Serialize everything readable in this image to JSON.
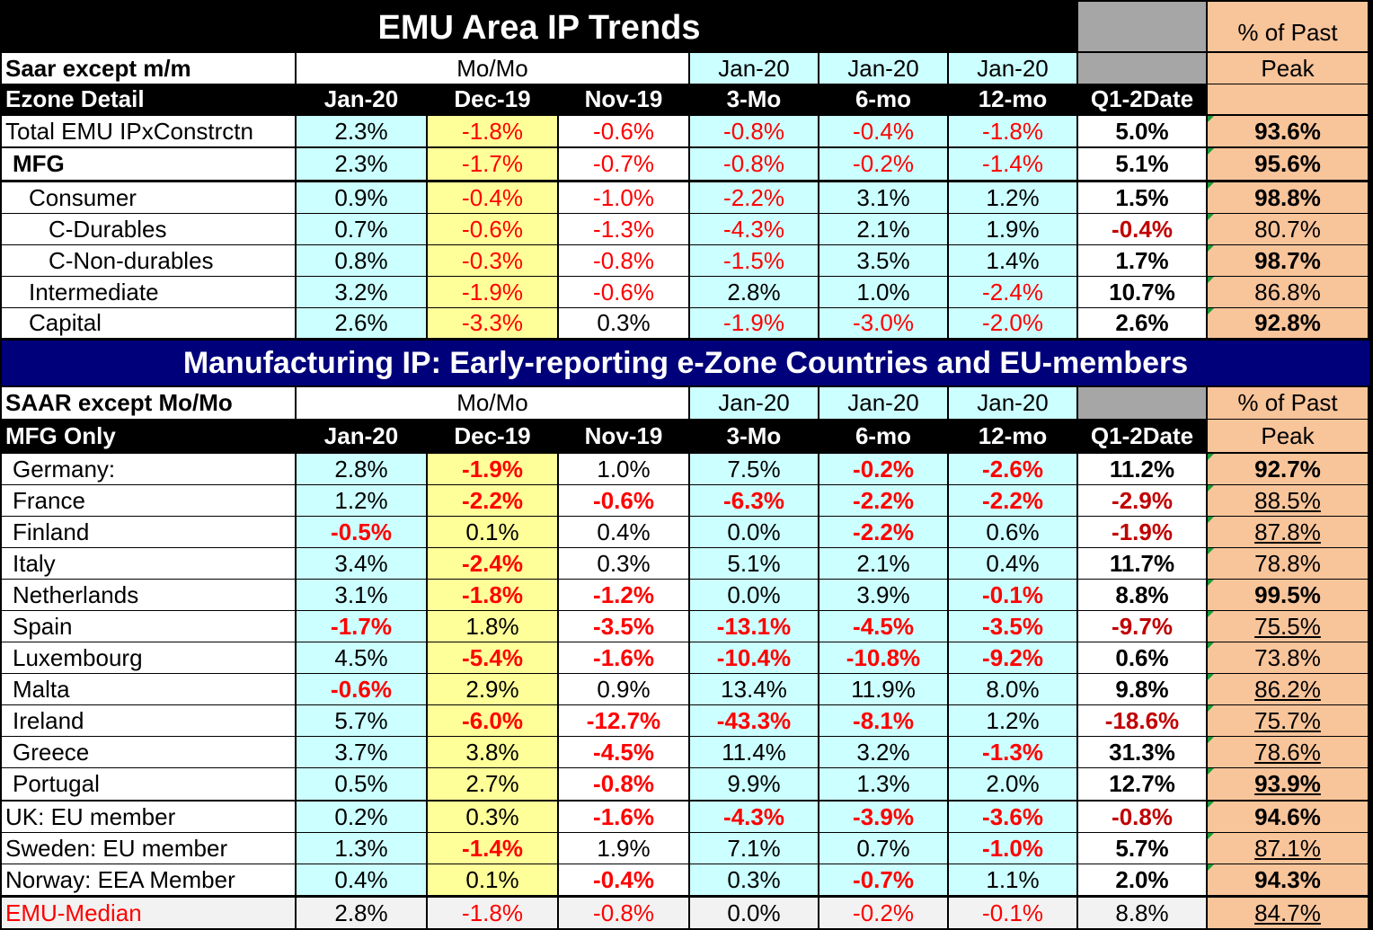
{
  "top_title": "EMU Area IP Trends",
  "mid_title": "Manufacturing IP: Early-reporting e-Zone Countries and EU-members",
  "pct_past": "% of Past",
  "peak": "Peak",
  "colors": {
    "cyan": "#ccffff",
    "yellow": "#ffff99",
    "white": "#ffffff",
    "peach": "#f8c49a",
    "gray": "#a6a6a6",
    "navy": "#00007a",
    "median_bg": "#f2f2f2",
    "red": "#ff0000",
    "darkred": "#c00000"
  },
  "t1": {
    "hdr1_label": "Saar except m/m",
    "hdr1_momo": "Mo/Mo",
    "hdr1_jan": [
      "Jan-20",
      "Jan-20",
      "Jan-20"
    ],
    "hdr2_label": "Ezone Detail",
    "cols": [
      "Jan-20",
      "Dec-19",
      "Nov-19",
      "3-Mo",
      "6-mo",
      "12-mo",
      "Q1-2Date"
    ],
    "rows": [
      {
        "label": "Total EMU IPxConstrctn",
        "indent": 0,
        "bold": false,
        "vals": [
          "2.3%",
          "-1.8%",
          "-0.6%",
          "-0.8%",
          "-0.4%",
          "-1.8%",
          "5.0%"
        ],
        "peak": "93.6%",
        "peak_bold": true
      },
      {
        "label": "MFG",
        "indent": 1,
        "bold": true,
        "vals": [
          "2.3%",
          "-1.7%",
          "-0.7%",
          "-0.8%",
          "-0.2%",
          "-1.4%",
          "5.1%"
        ],
        "peak": "95.6%",
        "peak_bold": true
      },
      {
        "label": "Consumer",
        "indent": 2,
        "bold": false,
        "vals": [
          "0.9%",
          "-0.4%",
          "-1.0%",
          "-2.2%",
          "3.1%",
          "1.2%",
          "1.5%"
        ],
        "peak": "98.8%",
        "peak_bold": true
      },
      {
        "label": "C-Durables",
        "indent": 3,
        "bold": false,
        "vals": [
          "0.7%",
          "-0.6%",
          "-1.3%",
          "-4.3%",
          "2.1%",
          "1.9%",
          "-0.4%"
        ],
        "peak": "80.7%",
        "peak_bold": false
      },
      {
        "label": "C-Non-durables",
        "indent": 3,
        "bold": false,
        "vals": [
          "0.8%",
          "-0.3%",
          "-0.8%",
          "-1.5%",
          "3.5%",
          "1.4%",
          "1.7%"
        ],
        "peak": "98.7%",
        "peak_bold": true
      },
      {
        "label": "Intermediate",
        "indent": 2,
        "bold": false,
        "vals": [
          "3.2%",
          "-1.9%",
          "-0.6%",
          "2.8%",
          "1.0%",
          "-2.4%",
          "10.7%"
        ],
        "peak": "86.8%",
        "peak_bold": false
      },
      {
        "label": "Capital",
        "indent": 2,
        "bold": false,
        "vals": [
          "2.6%",
          "-3.3%",
          "0.3%",
          "-1.9%",
          "-3.0%",
          "-2.0%",
          "2.6%"
        ],
        "peak": "92.8%",
        "peak_bold": true
      }
    ]
  },
  "t2": {
    "hdr1_label": "SAAR except Mo/Mo",
    "hdr1_momo": "Mo/Mo",
    "hdr1_jan": [
      "Jan-20",
      "Jan-20",
      "Jan-20"
    ],
    "hdr2_label": "MFG Only",
    "cols": [
      "Jan-20",
      "Dec-19",
      "Nov-19",
      "3-Mo",
      "6-mo",
      "12-mo",
      "Q1-2Date"
    ],
    "rows": [
      {
        "label": "Germany:",
        "vals": [
          "2.8%",
          "-1.9%",
          "1.0%",
          "7.5%",
          "-0.2%",
          "-2.6%",
          "11.2%"
        ],
        "peak": "92.7%",
        "peak_bold": true,
        "peak_u": false
      },
      {
        "label": "France",
        "vals": [
          "1.2%",
          "-2.2%",
          "-0.6%",
          "-6.3%",
          "-2.2%",
          "-2.2%",
          "-2.9%"
        ],
        "peak": "88.5%",
        "peak_bold": false,
        "peak_u": true
      },
      {
        "label": "Finland",
        "vals": [
          "-0.5%",
          "0.1%",
          "0.4%",
          "0.0%",
          "-2.2%",
          "0.6%",
          "-1.9%"
        ],
        "peak": "87.8%",
        "peak_bold": false,
        "peak_u": true
      },
      {
        "label": "Italy",
        "vals": [
          "3.4%",
          "-2.4%",
          "0.3%",
          "5.1%",
          "2.1%",
          "0.4%",
          "11.7%"
        ],
        "peak": "78.8%",
        "peak_bold": false,
        "peak_u": false
      },
      {
        "label": "Netherlands",
        "vals": [
          "3.1%",
          "-1.8%",
          "-1.2%",
          "0.0%",
          "3.9%",
          "-0.1%",
          "8.8%"
        ],
        "peak": "99.5%",
        "peak_bold": true,
        "peak_u": false
      },
      {
        "label": "Spain",
        "vals": [
          "-1.7%",
          "1.8%",
          "-3.5%",
          "-13.1%",
          "-4.5%",
          "-3.5%",
          "-9.7%"
        ],
        "peak": "75.5%",
        "peak_bold": false,
        "peak_u": true
      },
      {
        "label": "Luxembourg",
        "vals": [
          "4.5%",
          "-5.4%",
          "-1.6%",
          "-10.4%",
          "-10.8%",
          "-9.2%",
          "0.6%"
        ],
        "peak": "73.8%",
        "peak_bold": false,
        "peak_u": false
      },
      {
        "label": "Malta",
        "vals": [
          "-0.6%",
          "2.9%",
          "0.9%",
          "13.4%",
          "11.9%",
          "8.0%",
          "9.8%"
        ],
        "peak": "86.2%",
        "peak_bold": false,
        "peak_u": true
      },
      {
        "label": "Ireland",
        "vals": [
          "5.7%",
          "-6.0%",
          "-12.7%",
          "-43.3%",
          "-8.1%",
          "1.2%",
          "-18.6%"
        ],
        "peak": "75.7%",
        "peak_bold": false,
        "peak_u": true
      },
      {
        "label": "Greece",
        "vals": [
          "3.7%",
          "3.8%",
          "-4.5%",
          "11.4%",
          "3.2%",
          "-1.3%",
          "31.3%"
        ],
        "peak": "78.6%",
        "peak_bold": false,
        "peak_u": true
      },
      {
        "label": "Portugal",
        "vals": [
          "0.5%",
          "2.7%",
          "-0.8%",
          "9.9%",
          "1.3%",
          "2.0%",
          "12.7%"
        ],
        "peak": "93.9%",
        "peak_bold": true,
        "peak_u": true
      },
      {
        "label": "UK: EU member",
        "vals": [
          "0.2%",
          "0.3%",
          "-1.6%",
          "-4.3%",
          "-3.9%",
          "-3.6%",
          "-0.8%"
        ],
        "peak": "94.6%",
        "peak_bold": true,
        "peak_u": false
      },
      {
        "label": "Sweden: EU member",
        "vals": [
          "1.3%",
          "-1.4%",
          "1.9%",
          "7.1%",
          "0.7%",
          "-1.0%",
          "5.7%"
        ],
        "peak": "87.1%",
        "peak_bold": false,
        "peak_u": true
      },
      {
        "label": "Norway: EEA Member",
        "vals": [
          "0.4%",
          "0.1%",
          "-0.4%",
          "0.3%",
          "-0.7%",
          "1.1%",
          "2.0%"
        ],
        "peak": "94.3%",
        "peak_bold": true,
        "peak_u": false
      }
    ],
    "median": {
      "label": "EMU-Median",
      "vals": [
        "2.8%",
        "-1.8%",
        "-0.8%",
        "0.0%",
        "-0.2%",
        "-0.1%",
        "8.8%"
      ],
      "peak": "84.7%"
    }
  }
}
